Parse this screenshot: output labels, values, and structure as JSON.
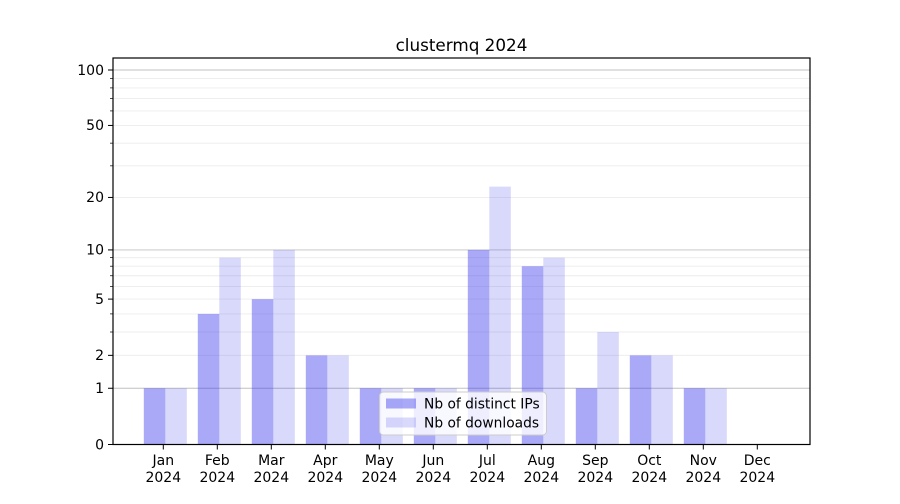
{
  "figure": {
    "title": "clustermq 2024"
  },
  "chart_data": {
    "type": "bar",
    "title": "clustermq 2024",
    "categories": [
      "Jan",
      "Feb",
      "Mar",
      "Apr",
      "May",
      "Jun",
      "Jul",
      "Aug",
      "Sep",
      "Oct",
      "Nov",
      "Dec"
    ],
    "x_tick_year": "2024",
    "series": [
      {
        "name": "Nb of distinct IPs",
        "color": "rgba(64,64,238,0.45)",
        "values": [
          1,
          4,
          5,
          2,
          1,
          1,
          10,
          8,
          1,
          2,
          1,
          0
        ]
      },
      {
        "name": "Nb of downloads",
        "color": "rgba(64,64,238,0.20)",
        "values": [
          1,
          9,
          10,
          2,
          1,
          1,
          23,
          9,
          3,
          2,
          1,
          0
        ]
      }
    ],
    "yscale": "log1p",
    "ylim": [
      0,
      117
    ],
    "y_tick_values": [
      0,
      1,
      2,
      5,
      10,
      20,
      50,
      100
    ],
    "y_tick_labels": [
      "0",
      "1",
      "2",
      "5",
      "10",
      "20",
      "50",
      "100"
    ],
    "y_major_grid_values": [
      1,
      10,
      100
    ],
    "y_minor_grid_values": [
      2,
      3,
      4,
      5,
      6,
      7,
      8,
      9,
      20,
      30,
      40,
      50,
      60,
      70,
      80,
      90
    ],
    "grid": true,
    "legend_position": "lower center",
    "colors": {
      "major_grid": "#c0c0c0",
      "minor_grid": "#ececec",
      "axis": "#000000",
      "legend_border": "#cccccc",
      "legend_bg": "rgba(255,255,255,0.8)"
    }
  }
}
